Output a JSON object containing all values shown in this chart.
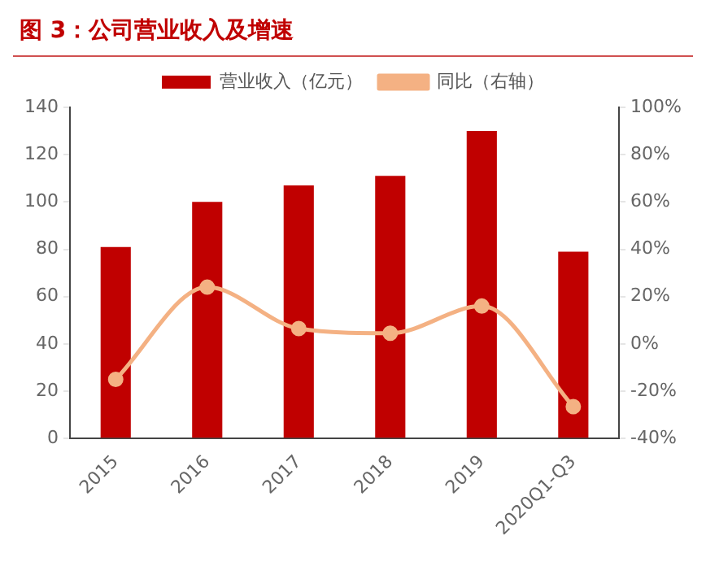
{
  "chart_data": {
    "type": "bar",
    "title": "图 3：公司营业收入及增速",
    "categories": [
      "2015",
      "2016",
      "2017",
      "2018",
      "2019",
      "2020Q1-Q3"
    ],
    "series": [
      {
        "name": "营业收入（亿元）",
        "color": "#c00000",
        "values": [
          81,
          100,
          107,
          111,
          130,
          79
        ]
      },
      {
        "name": "同比（右轴）",
        "type": "line",
        "axis": "y2",
        "color": "#f4b183",
        "marker": "circle",
        "values": [
          -15,
          24,
          6.5,
          4.5,
          16,
          -26.5
        ]
      }
    ],
    "ylim": [
      0,
      140
    ],
    "yticks": [
      0,
      20,
      40,
      60,
      80,
      100,
      120,
      140
    ],
    "y2lim": [
      -40,
      100
    ],
    "y2ticks": [
      {
        "value": -40,
        "label": "-40%"
      },
      {
        "value": -20,
        "label": "-20%"
      },
      {
        "value": 0,
        "label": "0%"
      },
      {
        "value": 20,
        "label": "20%"
      },
      {
        "value": 40,
        "label": "40%"
      },
      {
        "value": 60,
        "label": "60%"
      },
      {
        "value": 80,
        "label": "80%"
      },
      {
        "value": 100,
        "label": "100%"
      }
    ],
    "grid": false,
    "legend": "top"
  }
}
